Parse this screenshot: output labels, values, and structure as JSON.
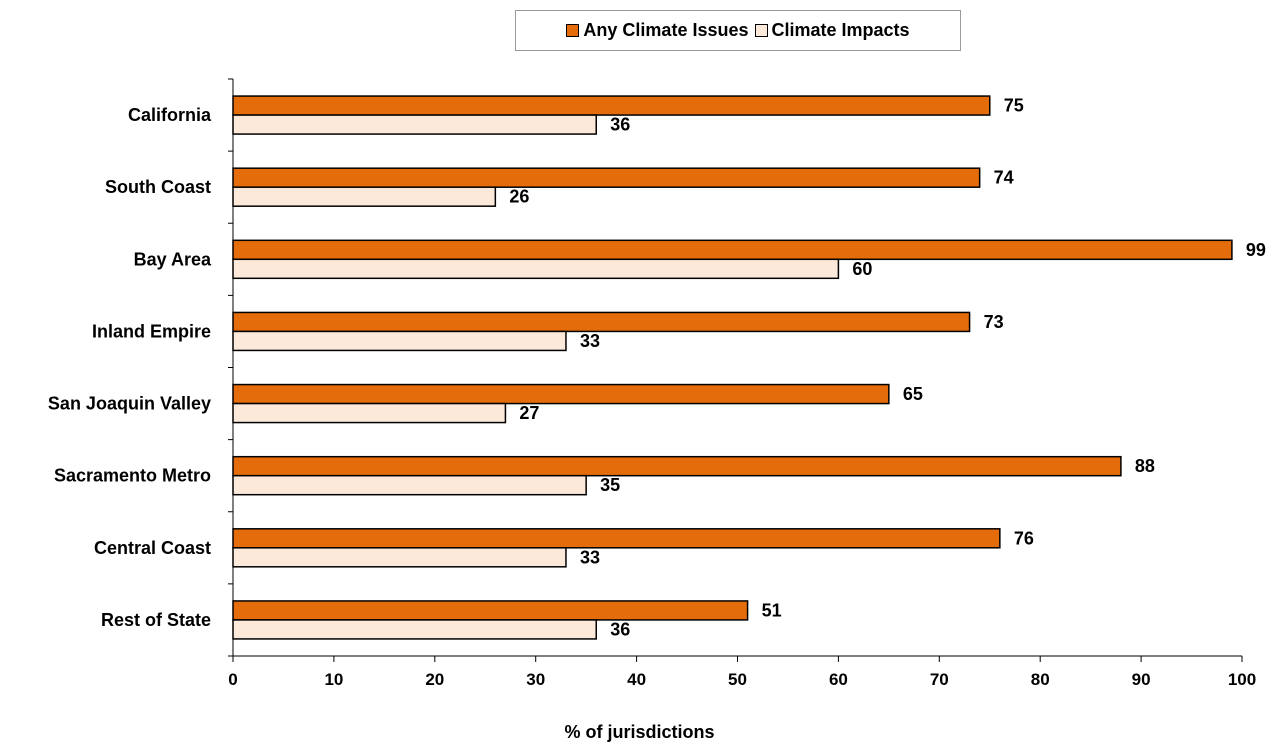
{
  "colors": {
    "series1": "#e46c0a",
    "series2": "#fde9d9"
  },
  "legend": {
    "items": [
      "Any Climate Issues",
      "Climate Impacts"
    ]
  },
  "chart_data": {
    "type": "bar",
    "orientation": "horizontal",
    "categories": [
      "California",
      "South Coast",
      "Bay Area",
      "Inland Empire",
      "San Joaquin Valley",
      "Sacramento Metro",
      "Central Coast",
      "Rest of State"
    ],
    "series": [
      {
        "name": "Any Climate Issues",
        "values": [
          75,
          74,
          99,
          73,
          65,
          88,
          76,
          51
        ]
      },
      {
        "name": "Climate Impacts",
        "values": [
          36,
          26,
          60,
          33,
          27,
          35,
          33,
          36
        ]
      }
    ],
    "xlabel": "% of jurisdictions",
    "ylabel": "",
    "xlim": [
      0,
      100
    ],
    "xticks": [
      0,
      10,
      20,
      30,
      40,
      50,
      60,
      70,
      80,
      90,
      100
    ],
    "data_labels": true,
    "grid": false,
    "legend_position": "top"
  }
}
